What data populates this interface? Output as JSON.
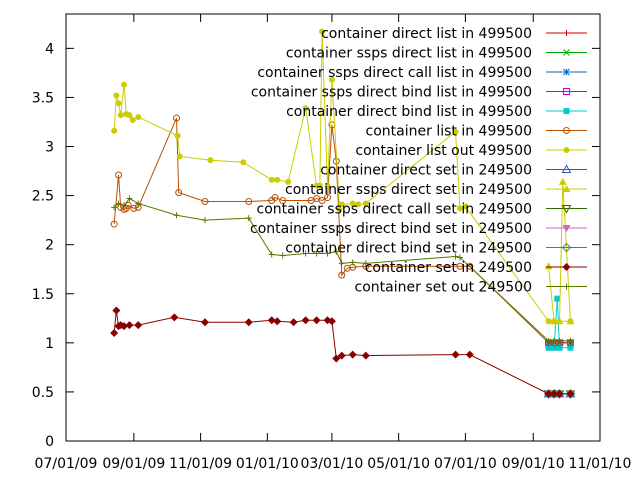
{
  "chart_data": {
    "type": "line",
    "title": "",
    "xlabel": "",
    "ylabel": "",
    "grid": false,
    "legend_position": "top-right",
    "xlim": [
      "2009-07-01",
      "2010-11-01"
    ],
    "ylim": [
      0,
      4.35
    ],
    "x_ticks": [
      {
        "date": "2009-07-01",
        "label": "07/01/09"
      },
      {
        "date": "2009-09-01",
        "label": "09/01/09"
      },
      {
        "date": "2009-11-01",
        "label": "11/01/09"
      },
      {
        "date": "2010-01-01",
        "label": "01/01/10"
      },
      {
        "date": "2010-03-01",
        "label": "03/01/10"
      },
      {
        "date": "2010-05-01",
        "label": "05/01/10"
      },
      {
        "date": "2010-07-01",
        "label": "07/01/10"
      },
      {
        "date": "2010-09-01",
        "label": "09/01/10"
      },
      {
        "date": "2010-11-01",
        "label": "11/01/10"
      }
    ],
    "y_ticks": [
      {
        "value": 0,
        "label": "0"
      },
      {
        "value": 0.5,
        "label": "0.5"
      },
      {
        "value": 1,
        "label": "1"
      },
      {
        "value": 1.5,
        "label": "1.5"
      },
      {
        "value": 2,
        "label": "2"
      },
      {
        "value": 2.5,
        "label": "2.5"
      },
      {
        "value": 3,
        "label": "3"
      },
      {
        "value": 3.5,
        "label": "3.5"
      },
      {
        "value": 4,
        "label": "4"
      }
    ],
    "series": [
      {
        "name": "container direct list in 499500",
        "color": "#cc0000",
        "marker": "plus",
        "x": [
          "2010-09-15",
          "2010-09-20",
          "2010-09-25",
          "2010-09-28",
          "2010-10-05"
        ],
        "y": [
          1.0,
          1.0,
          1.0,
          1.0,
          1.0
        ]
      },
      {
        "name": "container ssps direct list in 499500",
        "color": "#00aa00",
        "marker": "cross",
        "x": [
          "2010-09-15",
          "2010-09-20",
          "2010-09-25",
          "2010-10-05"
        ],
        "y": [
          1.0,
          1.0,
          1.0,
          1.0
        ]
      },
      {
        "name": "container ssps direct call list in 499500",
        "color": "#0066cc",
        "marker": "star",
        "x": [
          "2010-09-15",
          "2010-09-20",
          "2010-09-25",
          "2010-10-05"
        ],
        "y": [
          1.0,
          1.0,
          1.0,
          1.0
        ]
      },
      {
        "name": "container ssps direct bind list in 499500",
        "color": "#cc00cc",
        "marker": "square-open",
        "x": [
          "2010-09-15",
          "2010-09-20",
          "2010-09-25",
          "2010-10-05"
        ],
        "y": [
          1.0,
          1.0,
          1.0,
          1.0
        ]
      },
      {
        "name": "container direct bind list in 499500",
        "color": "#00cccc",
        "marker": "square",
        "x": [
          "2010-09-15",
          "2010-09-20",
          "2010-09-23",
          "2010-09-25",
          "2010-10-05"
        ],
        "y": [
          0.95,
          0.95,
          1.45,
          0.95,
          0.95
        ]
      },
      {
        "name": "container list in 499500",
        "color": "#b85000",
        "marker": "circle-open",
        "x": [
          "2009-08-14",
          "2009-08-18",
          "2009-08-20",
          "2009-08-23",
          "2009-08-25",
          "2009-08-27",
          "2009-09-01",
          "2009-09-05",
          "2009-10-10",
          "2009-10-12",
          "2009-11-05",
          "2009-12-15",
          "2010-01-05",
          "2010-01-08",
          "2010-01-15",
          "2010-02-10",
          "2010-02-15",
          "2010-02-20",
          "2010-02-25",
          "2010-03-01",
          "2010-03-05",
          "2010-03-10",
          "2010-03-15",
          "2010-03-20",
          "2010-04-01",
          "2010-06-26",
          "2010-07-05",
          "2010-09-15",
          "2010-09-20",
          "2010-09-25",
          "2010-10-05"
        ],
        "y": [
          2.21,
          2.71,
          2.38,
          2.36,
          2.37,
          2.4,
          2.37,
          2.38,
          3.29,
          2.53,
          2.44,
          2.44,
          2.45,
          2.48,
          2.45,
          2.45,
          2.47,
          2.45,
          2.48,
          3.22,
          2.85,
          1.69,
          1.76,
          1.77,
          1.78,
          1.78,
          1.78,
          1.0,
          1.0,
          1.0,
          1.0
        ]
      },
      {
        "name": "container list out 499500",
        "color": "#cccc00",
        "marker": "circle",
        "x": [
          "2009-08-14",
          "2009-08-16",
          "2009-08-18",
          "2009-08-20",
          "2009-08-23",
          "2009-08-25",
          "2009-08-28",
          "2009-08-31",
          "2009-09-05",
          "2009-10-11",
          "2009-10-13",
          "2009-11-10",
          "2009-12-10",
          "2010-01-05",
          "2010-01-10",
          "2010-01-20",
          "2010-02-05",
          "2010-02-15",
          "2010-02-18",
          "2010-02-20",
          "2010-02-25",
          "2010-03-01",
          "2010-03-08",
          "2010-03-10",
          "2010-03-20",
          "2010-03-25",
          "2010-04-01",
          "2010-06-22",
          "2010-06-26",
          "2010-07-01",
          "2010-09-15",
          "2010-09-20",
          "2010-10-05"
        ],
        "y": [
          3.16,
          3.52,
          3.44,
          3.32,
          3.63,
          3.33,
          3.32,
          3.27,
          3.3,
          3.11,
          2.9,
          2.86,
          2.84,
          2.66,
          2.66,
          2.64,
          3.39,
          2.6,
          2.6,
          4.17,
          2.6,
          3.68,
          2.36,
          2.41,
          2.42,
          2.41,
          2.42,
          3.15,
          2.37,
          2.39,
          1.22,
          1.22,
          1.22
        ]
      },
      {
        "name": "container direct set in 249500",
        "color": "#3355cc",
        "marker": "triangle-open",
        "x": [
          "2010-09-15",
          "2010-09-20",
          "2010-09-25",
          "2010-10-05"
        ],
        "y": [
          0.48,
          0.48,
          0.48,
          0.48
        ]
      },
      {
        "name": "container ssps direct set in 249500",
        "color": "#cccc00",
        "marker": "triangle",
        "x": [
          "2010-09-15",
          "2010-09-20",
          "2010-09-25",
          "2010-09-28",
          "2010-10-05"
        ],
        "y": [
          1.78,
          1.22,
          1.22,
          2.64,
          1.22
        ]
      },
      {
        "name": "container ssps direct call set in 249500",
        "color": "#336600",
        "marker": "triangle-down-open",
        "x": [
          "2010-09-15",
          "2010-09-20",
          "2010-09-25",
          "2010-10-05"
        ],
        "y": [
          0.48,
          0.48,
          0.48,
          0.48
        ]
      },
      {
        "name": "container ssps direct bind set in 249500",
        "color": "#cc66cc",
        "marker": "triangle-down",
        "x": [
          "2010-09-15",
          "2010-09-20",
          "2010-09-25",
          "2010-10-05"
        ],
        "y": [
          0.48,
          0.48,
          0.48,
          0.48
        ]
      },
      {
        "name": "container direct bind set in 249500",
        "color": "#338888",
        "marker": "diamond-open",
        "x": [
          "2010-09-15",
          "2010-09-20",
          "2010-09-25",
          "2010-10-05"
        ],
        "y": [
          0.48,
          0.48,
          0.48,
          0.48
        ]
      },
      {
        "name": "container set in 249500",
        "color": "#880000",
        "marker": "diamond",
        "x": [
          "2009-08-14",
          "2009-08-16",
          "2009-08-18",
          "2009-08-20",
          "2009-08-23",
          "2009-08-28",
          "2009-09-05",
          "2009-10-08",
          "2009-11-05",
          "2009-12-15",
          "2010-01-05",
          "2010-01-10",
          "2010-01-25",
          "2010-02-05",
          "2010-02-15",
          "2010-02-25",
          "2010-03-01",
          "2010-03-05",
          "2010-03-10",
          "2010-03-20",
          "2010-04-01",
          "2010-06-22",
          "2010-07-05",
          "2010-09-15",
          "2010-09-20",
          "2010-09-25",
          "2010-10-05"
        ],
        "y": [
          1.1,
          1.33,
          1.17,
          1.18,
          1.17,
          1.18,
          1.18,
          1.26,
          1.21,
          1.21,
          1.23,
          1.22,
          1.21,
          1.23,
          1.23,
          1.23,
          1.22,
          0.84,
          0.87,
          0.88,
          0.87,
          0.88,
          0.88,
          0.48,
          0.48,
          0.48,
          0.48
        ]
      },
      {
        "name": "container set out 249500",
        "color": "#557700",
        "marker": "plus",
        "x": [
          "2009-08-14",
          "2009-08-18",
          "2009-08-23",
          "2009-08-28",
          "2009-09-05",
          "2009-10-10",
          "2009-11-05",
          "2009-12-15",
          "2010-01-05",
          "2010-01-15",
          "2010-02-05",
          "2010-02-15",
          "2010-02-25",
          "2010-03-05",
          "2010-03-10",
          "2010-03-20",
          "2010-04-01",
          "2010-06-22",
          "2010-06-26",
          "2010-09-15",
          "2010-09-20",
          "2010-09-25",
          "2010-10-05"
        ],
        "y": [
          2.38,
          2.42,
          2.4,
          2.47,
          2.42,
          2.3,
          2.25,
          2.27,
          1.9,
          1.89,
          1.91,
          1.91,
          1.91,
          1.93,
          1.81,
          1.82,
          1.81,
          1.88,
          1.87,
          1.02,
          1.02,
          1.02,
          1.02
        ]
      }
    ]
  }
}
